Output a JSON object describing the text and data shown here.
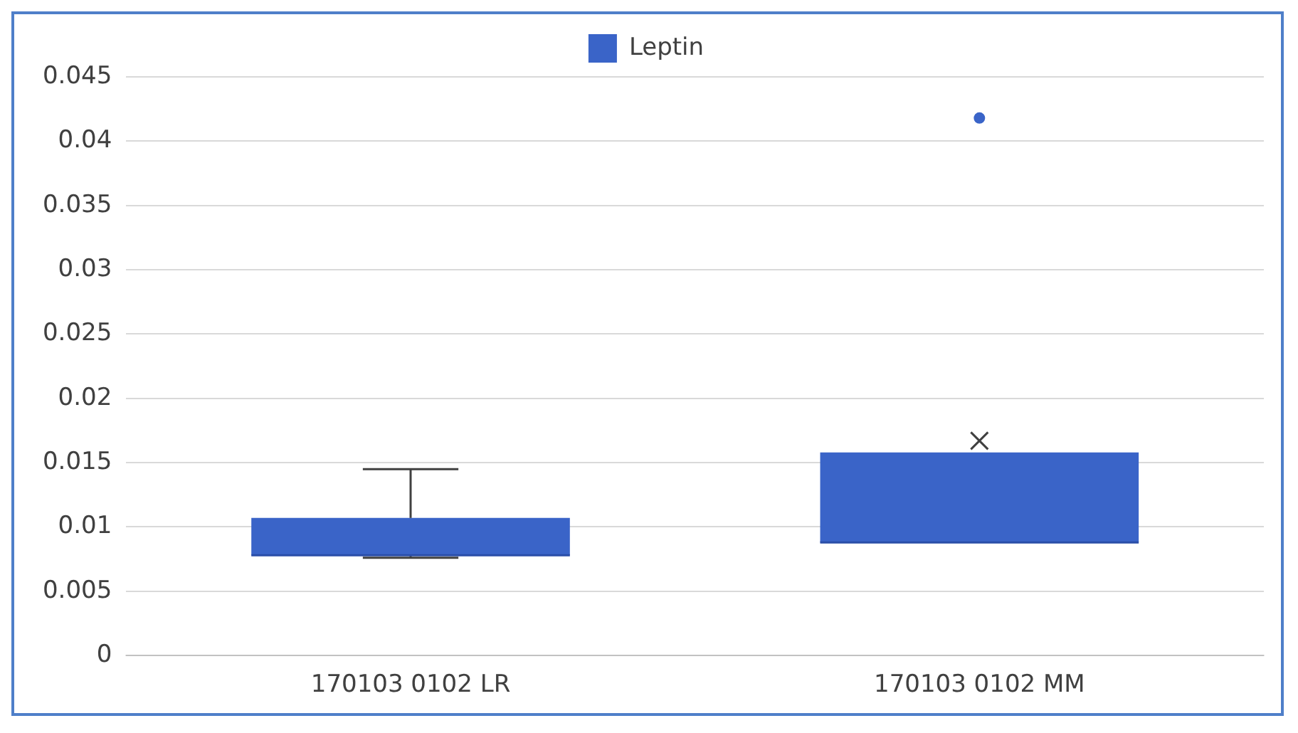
{
  "chart_data": {
    "type": "box",
    "categories": [
      "170103 0102 LR",
      "170103 0102 MM"
    ],
    "series": [
      {
        "name": "Leptin",
        "color": "#3a64c8",
        "boxes": [
          {
            "low": 0.0076,
            "q1": 0.0078,
            "median": 0.0078,
            "q3": 0.0107,
            "high": 0.0145
          },
          {
            "low": 0.0088,
            "q1": 0.0088,
            "median": 0.0088,
            "q3": 0.0158,
            "high": 0.0158,
            "mean": 0.0167,
            "outliers": [
              0.0418
            ]
          }
        ]
      }
    ],
    "ylim": [
      0,
      0.045
    ],
    "yticks": [
      0,
      0.005,
      0.01,
      0.015,
      0.02,
      0.025,
      0.03,
      0.035,
      0.04,
      0.045
    ],
    "grid": "y",
    "legend": "top"
  }
}
